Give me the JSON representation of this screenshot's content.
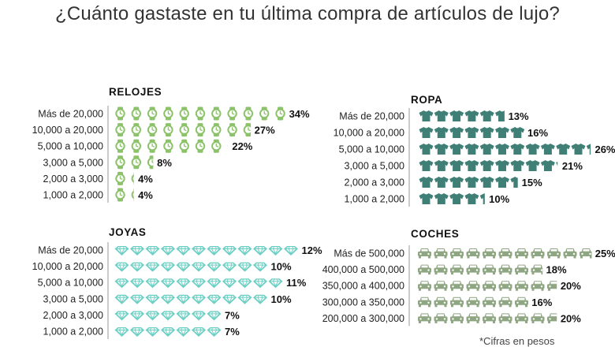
{
  "title": "¿Cuánto gastaste en tu última compra de artículos de lujo?",
  "footnote": "*Cifras en pesos",
  "colors": {
    "relojes": "#8cc36a",
    "ropa": "#3f7f76",
    "joyas": "#6ccfc4",
    "coches": "#8fa683"
  },
  "chart_data": [
    {
      "type": "bar",
      "id": "relojes",
      "title": "RELOJES",
      "icon": "watch-icon",
      "categories": [
        "Más de 20,000",
        "10,000 a 20,000",
        "5,000 a 10,000",
        "3,000 a 5,000",
        "2,000 a 3,000",
        "1,000 a 2,000"
      ],
      "values": [
        34,
        27,
        22,
        8,
        4,
        4
      ],
      "value_labels": [
        "34%",
        "27%",
        "22%",
        "8%",
        "4%",
        "4%"
      ]
    },
    {
      "type": "bar",
      "id": "ropa",
      "title": "ROPA",
      "icon": "tshirt-icon",
      "categories": [
        "Más de 20,000",
        "10,000 a 20,000",
        "5,000 a 10,000",
        "3,000 a 5,000",
        "2,000 a 3,000",
        "1,000 a 2,000"
      ],
      "values": [
        13,
        16,
        26,
        21,
        15,
        10
      ],
      "value_labels": [
        "13%",
        "16%",
        "26%",
        "21%",
        "15%",
        "10%"
      ]
    },
    {
      "type": "bar",
      "id": "joyas",
      "title": "JOYAS",
      "icon": "diamond-icon",
      "categories": [
        "Más de 20,000",
        "10,000 a 20,000",
        "5,000 a 10,000",
        "3,000 a 5,000",
        "2,000 a 3,000",
        "1,000 a 2,000"
      ],
      "values": [
        12,
        10,
        11,
        10,
        7,
        7
      ],
      "value_labels": [
        "12%",
        "10%",
        "11%",
        "10%",
        "7%",
        "7%"
      ]
    },
    {
      "type": "bar",
      "id": "coches",
      "title": "COCHES",
      "icon": "car-icon",
      "categories": [
        "Más de 500,000",
        "400,000 a 500,000",
        "350,000 a 400,000",
        "300,000 a 350,000",
        "200,000 a 300,000"
      ],
      "values": [
        25,
        18,
        20,
        16,
        20
      ],
      "value_labels": [
        "25%",
        "18%",
        "20%",
        "16%",
        "20%"
      ]
    }
  ]
}
